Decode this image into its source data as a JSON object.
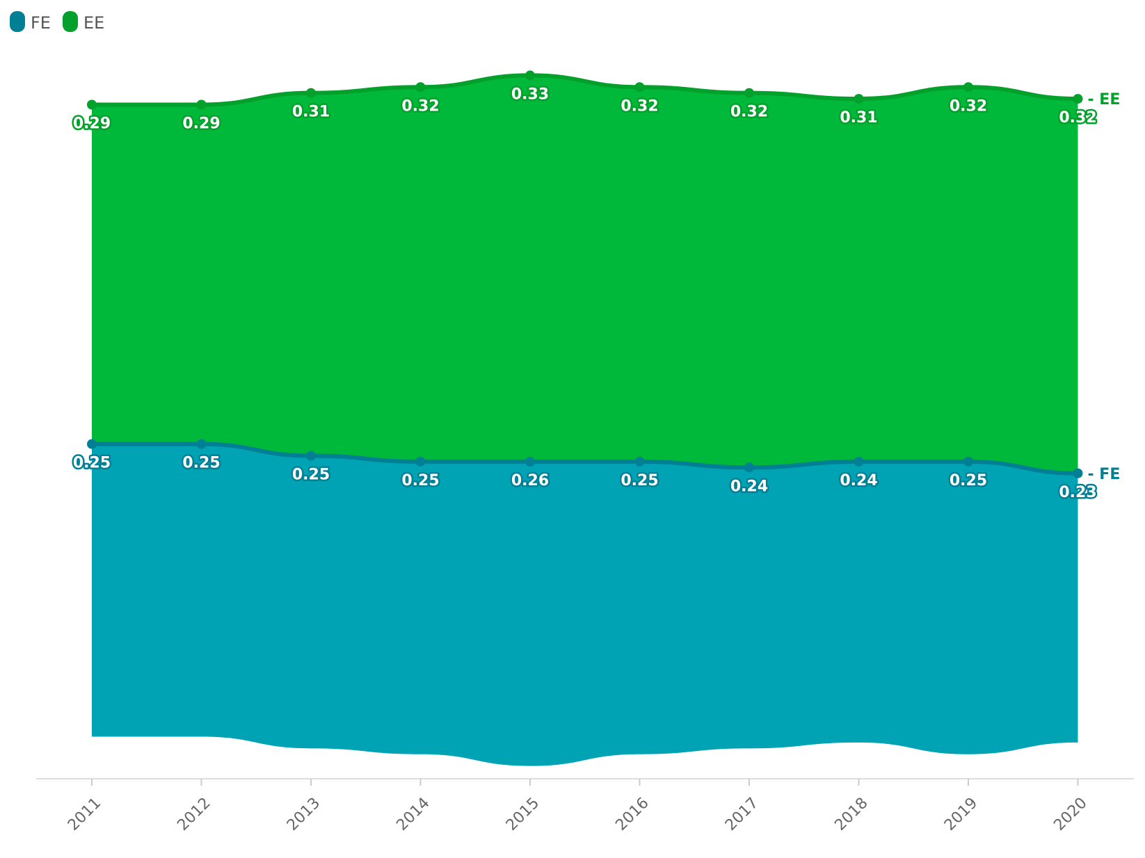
{
  "chart_data": {
    "type": "area",
    "stacked": true,
    "categories": [
      "2011",
      "2012",
      "2013",
      "2014",
      "2015",
      "2016",
      "2017",
      "2018",
      "2019",
      "2020"
    ],
    "series": [
      {
        "name": "FE",
        "values": [
          0.25,
          0.25,
          0.25,
          0.25,
          0.26,
          0.25,
          0.24,
          0.24,
          0.25,
          0.23
        ],
        "labels": [
          "0.25",
          "0.25",
          "0.25",
          "0.25",
          "0.26",
          "0.25",
          "0.24",
          "0.24",
          "0.25",
          "0.23"
        ],
        "color": "#00a3b4",
        "line_color": "#007f95",
        "end_label": "FE"
      },
      {
        "name": "EE",
        "values": [
          0.29,
          0.29,
          0.31,
          0.32,
          0.33,
          0.32,
          0.32,
          0.31,
          0.32,
          0.32
        ],
        "labels": [
          "0.29",
          "0.29",
          "0.31",
          "0.32",
          "0.33",
          "0.32",
          "0.32",
          "0.31",
          "0.32",
          "0.32"
        ],
        "color": "#00b93b",
        "line_color": "#04a02c",
        "end_label": "EE"
      }
    ],
    "legend": {
      "position": "top-left",
      "entries": [
        {
          "name": "FE",
          "color": "#007f95"
        },
        {
          "name": "EE",
          "color": "#04a02c"
        }
      ]
    },
    "grid": false,
    "ylim": [
      0,
      0.6
    ],
    "y_axis_visible": false,
    "title": "",
    "xlabel": "",
    "ylabel": ""
  }
}
